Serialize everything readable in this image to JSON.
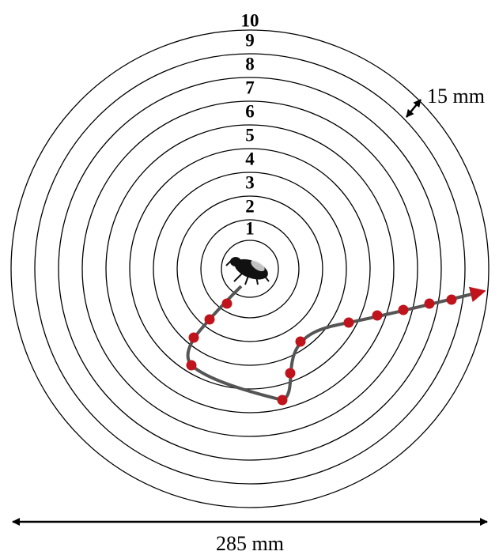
{
  "rings": {
    "labels": [
      "1",
      "2",
      "3",
      "4",
      "5",
      "6",
      "7",
      "8",
      "9",
      "10"
    ]
  },
  "annotations": {
    "ring_width": "15 mm",
    "diameter": "285 mm"
  }
}
